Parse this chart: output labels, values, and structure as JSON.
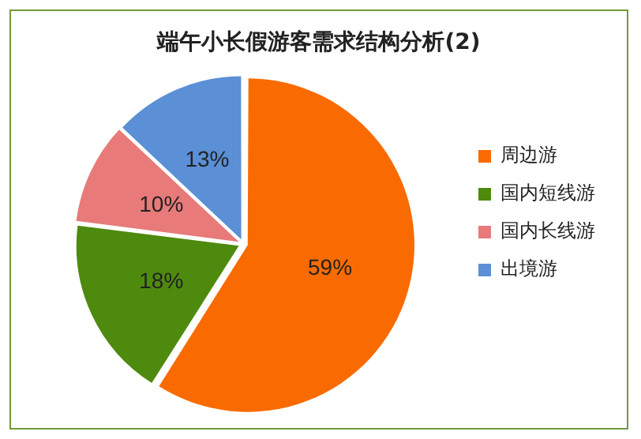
{
  "chart_data": {
    "type": "pie",
    "title": "端午小长假游客需求结构分析(2)",
    "categories": [
      "周边游",
      "国内短线游",
      "国内长线游",
      "出境游"
    ],
    "values": [
      59,
      18,
      10,
      13
    ],
    "value_labels": [
      "59%",
      "18%",
      "10%",
      "13%"
    ],
    "colors": [
      "#f96b00",
      "#4e8a0e",
      "#e87a7a",
      "#5b8fd6"
    ],
    "legend": "right"
  }
}
